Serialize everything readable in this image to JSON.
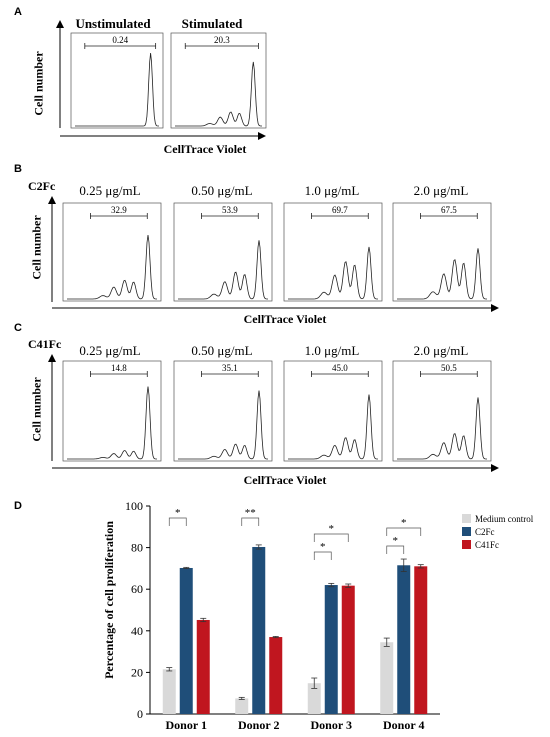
{
  "panels": {
    "a_letter": "A",
    "b_letter": "B",
    "c_letter": "C",
    "d_letter": "D",
    "b_label": "C2Fc",
    "c_label": "C41Fc"
  },
  "axes": {
    "flow_ylabel": "Cell number",
    "flow_xlabel": "CellTrace Violet"
  },
  "panel_a": {
    "headers": [
      "Unstimulated",
      "Stimulated"
    ],
    "gate_values": [
      "0.24",
      "20.3"
    ]
  },
  "panel_b": {
    "concentrations": [
      "0.25 μg/mL",
      "0.50 μg/mL",
      "1.0 μg/mL",
      "2.0 μg/mL"
    ],
    "gate_values": [
      "32.9",
      "53.9",
      "69.7",
      "67.5"
    ]
  },
  "panel_c": {
    "concentrations": [
      "0.25 μg/mL",
      "0.50 μg/mL",
      "1.0 μg/mL",
      "2.0 μg/mL"
    ],
    "gate_values": [
      "14.8",
      "35.1",
      "45.0",
      "50.5"
    ]
  },
  "colors": {
    "medium": "#d9d9d9",
    "c2fc": "#1f4e79",
    "c41fc": "#c0161f"
  },
  "chart_data": [
    {
      "type": "bar",
      "categories": [
        "Donor 1",
        "Donor 2",
        "Donor 3",
        "Donor 4"
      ],
      "series": [
        {
          "name": "Medium control",
          "values": [
            21.5,
            7.5,
            14.8,
            34.5
          ],
          "errors": [
            0.8,
            0.5,
            2.5,
            2.0
          ]
        },
        {
          "name": "C2Fc",
          "values": [
            70.2,
            80.3,
            62.0,
            71.5
          ],
          "errors": [
            0.3,
            1.0,
            0.8,
            3.0
          ]
        },
        {
          "name": "C41Fc",
          "values": [
            45.2,
            37.0,
            61.7,
            71.0
          ],
          "errors": [
            0.8,
            0.3,
            0.8,
            0.8
          ]
        }
      ],
      "ylabel": "Percentage of cell proliferation",
      "ylim": [
        0,
        100
      ],
      "yticks": [
        0,
        20,
        40,
        60,
        80,
        100
      ],
      "legend": "top-right",
      "significance": [
        {
          "donor": "Donor 1",
          "label": "*",
          "comparisons": [
            "C2Fc"
          ]
        },
        {
          "donor": "Donor 2",
          "label": "**",
          "comparisons": [
            "C2Fc"
          ]
        },
        {
          "donor": "Donor 3",
          "label": "*",
          "comparisons": [
            "C41Fc",
            "C2Fc"
          ]
        },
        {
          "donor": "Donor 4",
          "label": "*",
          "comparisons": [
            "C41Fc",
            "C2Fc"
          ]
        }
      ]
    }
  ]
}
